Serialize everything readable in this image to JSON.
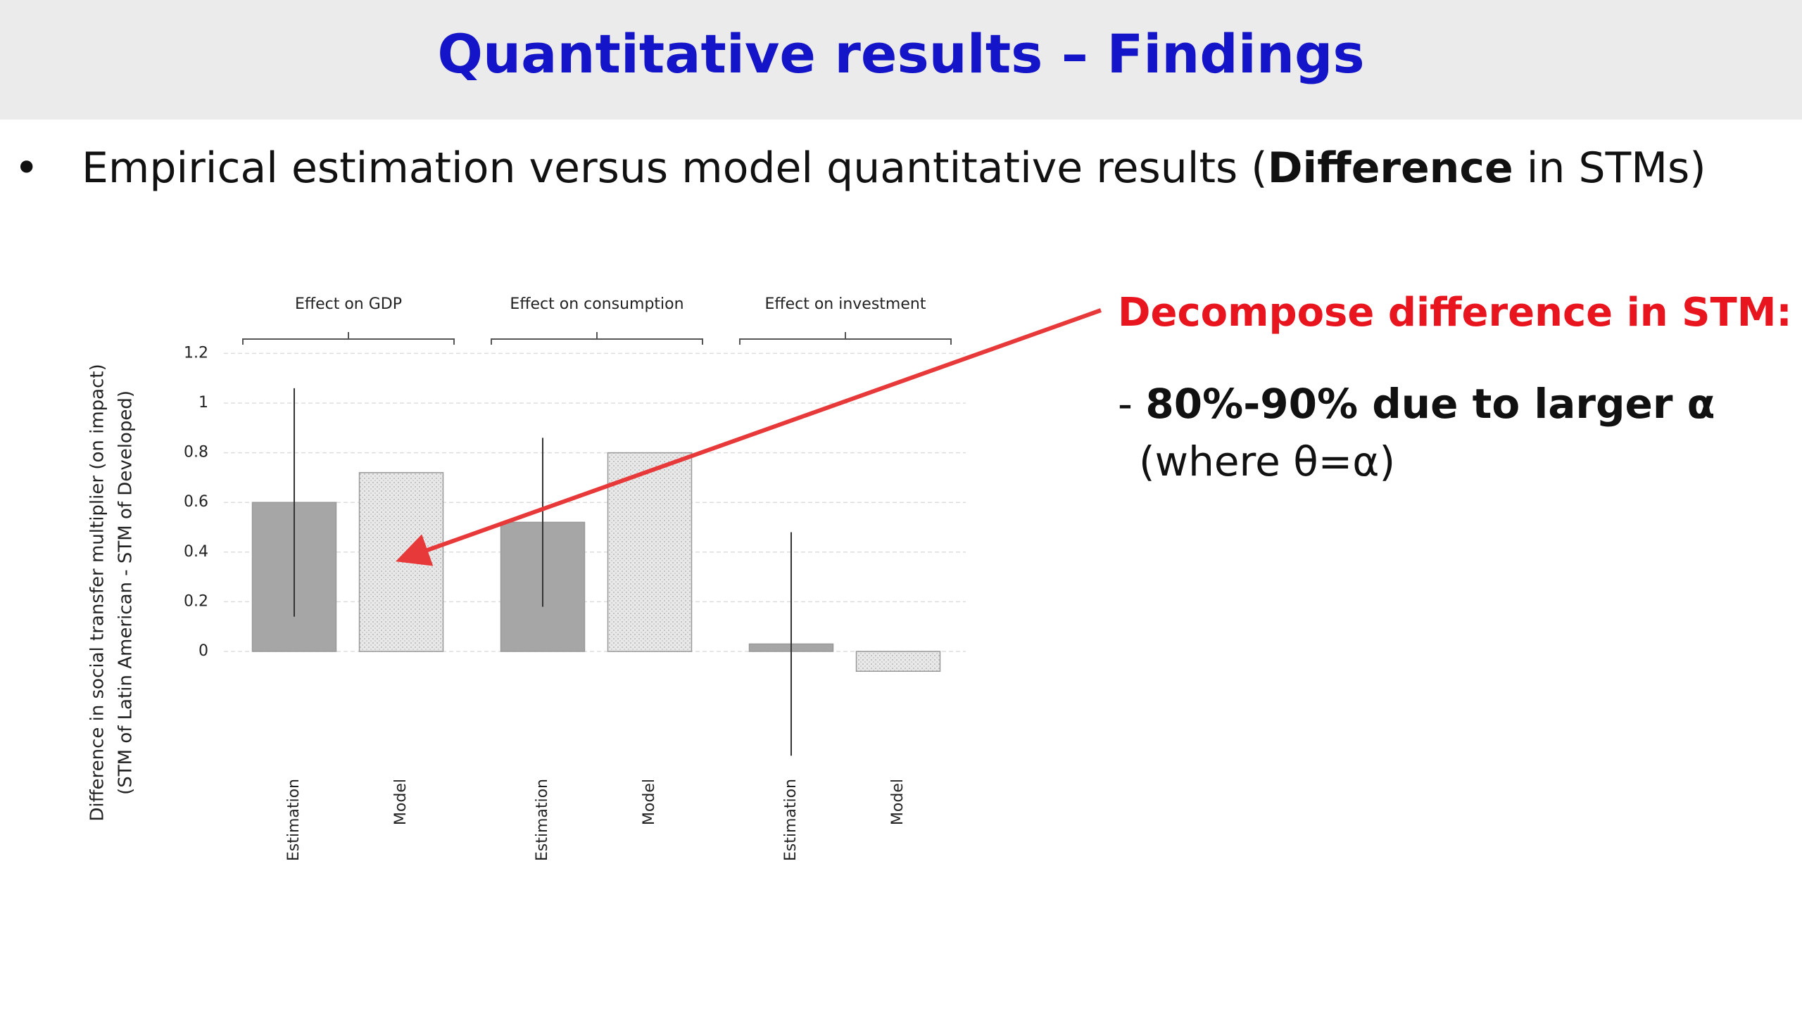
{
  "header": {
    "title": "Quantitative results – Findings"
  },
  "bullet": {
    "parts": [
      "Empirical estimation versus model quantitative results (",
      "Difference",
      " in STMs)"
    ]
  },
  "annotation": {
    "heading": "Decompose difference in STM:",
    "dash": "-",
    "point": "80%-90% due to larger α",
    "note": "(where θ=α)"
  },
  "chart_data": {
    "type": "bar",
    "categories": [
      "Effect on GDP",
      "Effect on consumption",
      "Effect on investment"
    ],
    "series": [
      {
        "name": "Estimation",
        "color": "#a6a6a6",
        "values": [
          0.6,
          0.52,
          0.03
        ],
        "errors": [
          0.46,
          0.34,
          0.45
        ]
      },
      {
        "name": "Model",
        "color": "#e2e2e2",
        "values": [
          0.72,
          0.8,
          -0.08
        ]
      }
    ],
    "ylabel": [
      "Difference in social transfer multiplier (on impact)",
      "(STM of Latin American  - STM of Developed)"
    ],
    "ylim": [
      -0.5,
      1.2
    ],
    "yticks": [
      0,
      0.2,
      0.4,
      0.6,
      0.8,
      1,
      1.2
    ],
    "grid": true
  }
}
